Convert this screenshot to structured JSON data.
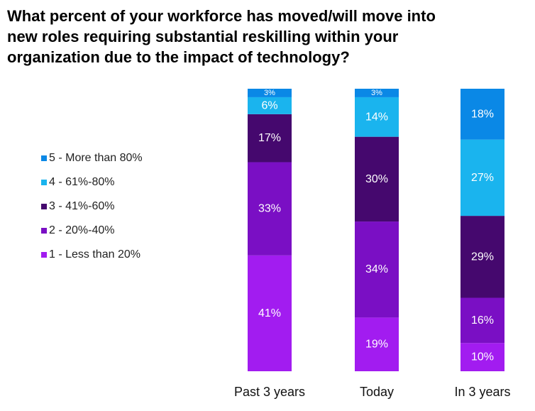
{
  "chart_data": {
    "type": "bar",
    "stacked": true,
    "title": "What percent of your workforce has moved/will  move into\nnew roles requiring substantial reskilling within your\norganization due to the impact of technology?",
    "categories": [
      "Past 3 years",
      "Today",
      "In 3 years"
    ],
    "ylim": [
      0,
      100
    ],
    "legend_position": "left",
    "series": [
      {
        "name": "1 - Less than 20%",
        "color": "#a21cf0",
        "values": [
          41,
          19,
          10
        ],
        "labels": [
          "41%",
          "19%",
          "10%"
        ]
      },
      {
        "name": "2 - 20%-40%",
        "color": "#7a0fc4",
        "values": [
          33,
          34,
          16
        ],
        "labels": [
          "33%",
          "34%",
          "16%"
        ]
      },
      {
        "name": "3 - 41%-60%",
        "color": "#45086e",
        "values": [
          17,
          30,
          29
        ],
        "labels": [
          "17%",
          "30%",
          "29%"
        ]
      },
      {
        "name": "4 - 61%-80%",
        "color": "#1ab4ee",
        "values": [
          6,
          14,
          27
        ],
        "labels": [
          "6%",
          "14%",
          "27%"
        ]
      },
      {
        "name": "5 - More than 80%",
        "color": "#0a88e6",
        "values": [
          3,
          3,
          18
        ],
        "labels": [
          "3%",
          "3%",
          "18%"
        ]
      }
    ]
  }
}
